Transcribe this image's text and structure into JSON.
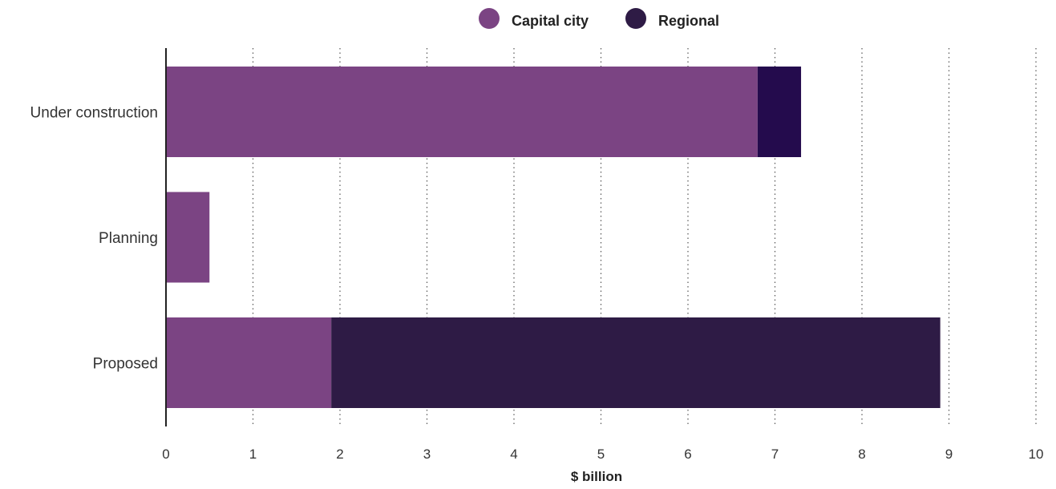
{
  "chart_data": {
    "type": "bar",
    "orientation": "horizontal",
    "stacked": true,
    "categories": [
      "Under construction",
      "Planning",
      "Proposed"
    ],
    "series": [
      {
        "name": "Capital city",
        "values": [
          6.8,
          0.5,
          1.9
        ],
        "color": "#7b4483"
      },
      {
        "name": "Regional",
        "values": [
          0.5,
          0,
          7.0
        ],
        "colors": [
          "#240b4d",
          "#240b4d",
          "#2e1b45"
        ],
        "color": "#2e1b45"
      }
    ],
    "xlabel": "$ billion",
    "ylabel": "",
    "title": "",
    "xlim": [
      0,
      10
    ],
    "xticks": [
      "0",
      "1",
      "2",
      "3",
      "4",
      "5",
      "6",
      "7",
      "8",
      "9",
      "10"
    ],
    "grid": "vertical dotted",
    "legend_position": "top-center"
  }
}
